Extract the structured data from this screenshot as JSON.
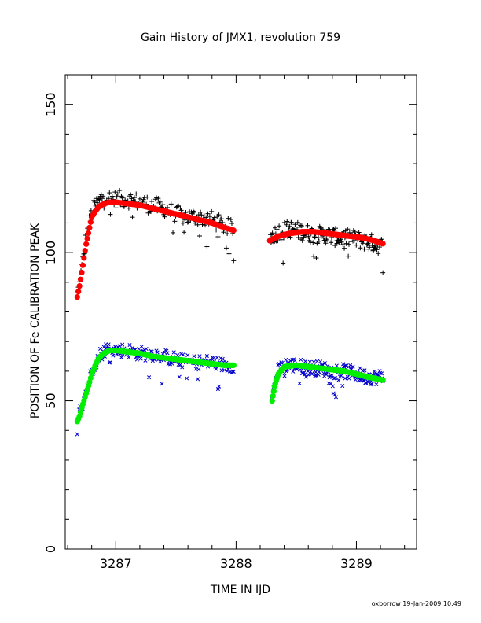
{
  "chart_data": {
    "type": "scatter",
    "title": "Gain History of JMX1, revolution 759",
    "xlabel": "TIME IN IJD",
    "ylabel": "POSITION OF Fe CALIBRATION PEAK",
    "xlim": [
      3286.58,
      3289.5
    ],
    "ylim": [
      0,
      160
    ],
    "xticks": [
      3287,
      3288,
      3289
    ],
    "yticks": [
      0,
      50,
      100,
      150
    ],
    "x_minor_step": 0.2,
    "y_minor_step": 10,
    "grid": false,
    "legend": "none",
    "footer": "oxborrow 19-Jan-2009 10:49",
    "series": [
      {
        "marker": "plus",
        "color": "#000000",
        "segments": [
          {
            "x": [
              3286.68,
              3286.7,
              3286.72,
              3286.75,
              3286.78,
              3286.8,
              3286.83,
              3286.86,
              3286.9,
              3286.95,
              3287.0,
              3287.1,
              3287.2,
              3287.3,
              3287.4,
              3287.5,
              3287.6,
              3287.7,
              3287.8,
              3287.9,
              3287.98
            ],
            "y": [
              86,
              90,
              95,
              104,
              110,
              113,
              116,
              117,
              120,
              118,
              118,
              118,
              117,
              116,
              115,
              113,
              112,
              112,
              111,
              109,
              108
            ]
          },
          {
            "x": [
              3288.28,
              3288.35,
              3288.45,
              3288.55,
              3288.65,
              3288.75,
              3288.85,
              3288.95,
              3289.05,
              3289.15,
              3289.22
            ],
            "y": [
              105,
              107,
              108,
              107,
              106,
              106,
              105,
              105,
              104,
              103,
              102
            ]
          }
        ],
        "jitter": 3
      },
      {
        "marker": "line",
        "color": "#ff0000",
        "segments": [
          {
            "x": [
              3286.68,
              3286.7,
              3286.72,
              3286.75,
              3286.78,
              3286.8,
              3286.83,
              3286.86,
              3286.9,
              3286.95,
              3287.0,
              3287.1,
              3287.2,
              3287.3,
              3287.4,
              3287.5,
              3287.6,
              3287.7,
              3287.8,
              3287.9,
              3287.98
            ],
            "y": [
              85,
              89,
              94,
              102,
              108,
              112,
              114,
              115.5,
              116.5,
              117,
              117,
              116.5,
              116,
              115,
              114,
              113,
              112,
              111,
              110,
              108.5,
              107.5
            ]
          },
          {
            "x": [
              3288.28,
              3288.35,
              3288.45,
              3288.55,
              3288.65,
              3288.75,
              3288.85,
              3288.95,
              3289.05,
              3289.15,
              3289.22
            ],
            "y": [
              104,
              105.5,
              106.5,
              107,
              107,
              106.5,
              106,
              105.5,
              105,
              104,
              103
            ]
          }
        ]
      },
      {
        "marker": "cross",
        "color": "#0000cc",
        "segments": [
          {
            "x": [
              3286.68,
              3286.7,
              3286.72,
              3286.75,
              3286.78,
              3286.8,
              3286.83,
              3286.86,
              3286.9,
              3286.95,
              3287.0,
              3287.1,
              3287.2,
              3287.3,
              3287.4,
              3287.5,
              3287.6,
              3287.7,
              3287.8,
              3287.9,
              3287.98
            ],
            "y": [
              44,
              46,
              49,
              53,
              57,
              60,
              63,
              65,
              67,
              68,
              67,
              67,
              66,
              66,
              65,
              64,
              63,
              63,
              63,
              62,
              62
            ]
          },
          {
            "x": [
              3288.3,
              3288.32,
              3288.35,
              3288.4,
              3288.5,
              3288.6,
              3288.7,
              3288.8,
              3288.9,
              3289.0,
              3289.1,
              3289.22
            ],
            "y": [
              51,
              56,
              60,
              62,
              62,
              61,
              61,
              60,
              60,
              59,
              58,
              58
            ]
          }
        ],
        "jitter": 2.5
      },
      {
        "marker": "line",
        "color": "#00ee00",
        "segments": [
          {
            "x": [
              3286.68,
              3286.7,
              3286.72,
              3286.75,
              3286.78,
              3286.8,
              3286.83,
              3286.86,
              3286.9,
              3286.95,
              3287.0,
              3287.1,
              3287.2,
              3287.3,
              3287.4,
              3287.5,
              3287.6,
              3287.7,
              3287.8,
              3287.9,
              3287.98
            ],
            "y": [
              43,
              45,
              48,
              52,
              56,
              59,
              62,
              64.5,
              66,
              67,
              67,
              66.5,
              66,
              65,
              64.5,
              64,
              63.5,
              63,
              62.5,
              62,
              62
            ]
          },
          {
            "x": [
              3288.3,
              3288.32,
              3288.35,
              3288.4,
              3288.5,
              3288.6,
              3288.7,
              3288.8,
              3288.9,
              3289.0,
              3289.1,
              3289.22
            ],
            "y": [
              50,
              55,
              59,
              61.5,
              62,
              61.5,
              61,
              60.5,
              60,
              59,
              58,
              57
            ]
          }
        ]
      }
    ]
  }
}
